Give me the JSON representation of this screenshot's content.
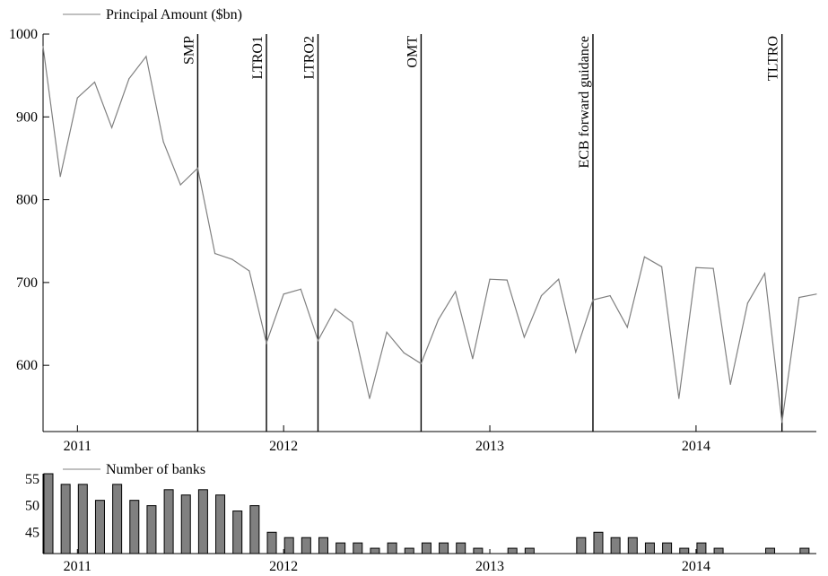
{
  "chart_data": [
    {
      "type": "line",
      "xlim": [
        "2010-11",
        "2014-08"
      ],
      "ylim": [
        520,
        1000
      ],
      "y_ticks": [
        600,
        700,
        800,
        900,
        1000
      ],
      "x_ticks": [
        "2011",
        "2012",
        "2013",
        "2014"
      ],
      "legend": {
        "label": "Principal Amount ($bn)",
        "position": "top-left"
      },
      "series": [
        {
          "name": "Principal Amount ($bn)",
          "color": "#808080",
          "x": [
            "2010-11",
            "2010-12",
            "2011-01",
            "2011-02",
            "2011-03",
            "2011-04",
            "2011-05",
            "2011-06",
            "2011-07",
            "2011-08",
            "2011-09",
            "2011-10",
            "2011-11",
            "2011-12",
            "2012-01",
            "2012-02",
            "2012-03",
            "2012-04",
            "2012-05",
            "2012-06",
            "2012-07",
            "2012-08",
            "2012-09",
            "2012-10",
            "2012-11",
            "2012-12",
            "2013-01",
            "2013-02",
            "2013-03",
            "2013-04",
            "2013-05",
            "2013-06",
            "2013-07",
            "2013-08",
            "2013-09",
            "2013-10",
            "2013-11",
            "2013-12",
            "2014-01",
            "2014-02",
            "2014-03",
            "2014-04",
            "2014-05",
            "2014-06",
            "2014-07",
            "2014-08"
          ],
          "values": [
            985,
            828,
            923,
            942,
            887,
            946,
            973,
            870,
            818,
            838,
            735,
            728,
            714,
            627,
            686,
            692,
            630,
            668,
            652,
            560,
            640,
            615,
            602,
            655,
            689,
            608,
            704,
            703,
            634,
            684,
            704,
            616,
            679,
            684,
            646,
            731,
            719,
            560,
            718,
            717,
            577,
            675,
            711,
            531,
            682,
            686
          ]
        }
      ],
      "events": [
        {
          "label": "SMP",
          "x": "2011-08"
        },
        {
          "label": "LTRO1",
          "x": "2011-12"
        },
        {
          "label": "LTRO2",
          "x": "2012-03"
        },
        {
          "label": "OMT",
          "x": "2012-09"
        },
        {
          "label": "ECB forward guidance",
          "x": "2013-07"
        },
        {
          "label": "TLTRO",
          "x": "2014-06"
        }
      ],
      "grid": false
    },
    {
      "type": "bar",
      "xlim": [
        "2010-11",
        "2014-08"
      ],
      "ylim": [
        41,
        56
      ],
      "y_ticks": [
        45,
        50,
        55
      ],
      "x_ticks": [
        "2011",
        "2012",
        "2013",
        "2014"
      ],
      "legend": {
        "label": "Number of banks",
        "position": "top-left"
      },
      "series": [
        {
          "name": "Number of banks",
          "color": "#808080",
          "x": [
            "2010-11",
            "2010-12",
            "2011-01",
            "2011-02",
            "2011-03",
            "2011-04",
            "2011-05",
            "2011-06",
            "2011-07",
            "2011-08",
            "2011-09",
            "2011-10",
            "2011-11",
            "2011-12",
            "2012-01",
            "2012-02",
            "2012-03",
            "2012-04",
            "2012-05",
            "2012-06",
            "2012-07",
            "2012-08",
            "2012-09",
            "2012-10",
            "2012-11",
            "2012-12",
            "2013-01",
            "2013-02",
            "2013-03",
            "2013-04",
            "2013-05",
            "2013-06",
            "2013-07",
            "2013-08",
            "2013-09",
            "2013-10",
            "2013-11",
            "2013-12",
            "2014-01",
            "2014-02",
            "2014-03",
            "2014-04",
            "2014-05",
            "2014-06",
            "2014-07",
            "2014-08"
          ],
          "values": [
            56,
            54,
            54,
            51,
            54,
            51,
            50,
            53,
            52,
            53,
            52,
            49,
            50,
            45,
            44,
            44,
            44,
            43,
            43,
            42,
            43,
            42,
            43,
            43,
            43,
            42,
            41,
            42,
            42,
            41,
            41,
            44,
            45,
            44,
            44,
            43,
            43,
            42,
            43,
            42,
            41,
            41,
            42,
            41,
            42,
            41
          ]
        }
      ],
      "grid": false
    }
  ]
}
